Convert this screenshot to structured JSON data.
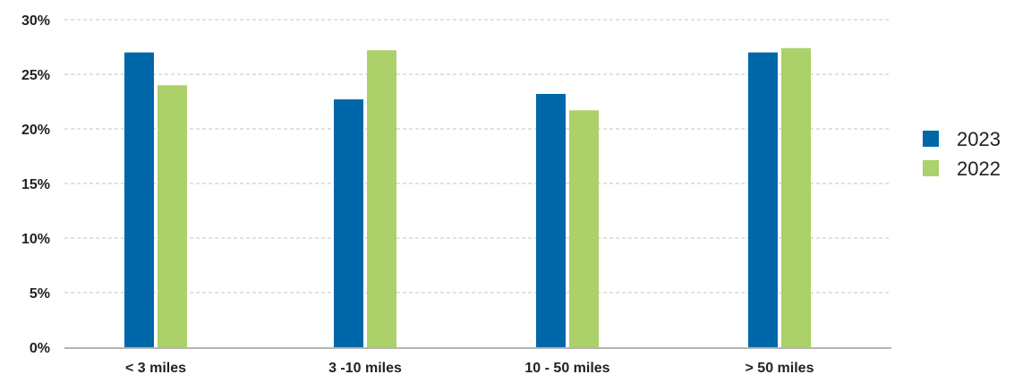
{
  "chart_data": {
    "type": "bar",
    "title": "",
    "xlabel": "",
    "ylabel": "",
    "categories": [
      "< 3 miles",
      "3 -10 miles",
      "10 - 50 miles",
      "> 50 miles"
    ],
    "series": [
      {
        "name": "2023",
        "color": "#0068a9",
        "values": [
          27.0,
          22.7,
          23.2,
          27.0
        ]
      },
      {
        "name": "2022",
        "color": "#acd16a",
        "values": [
          24.0,
          27.2,
          21.7,
          27.4
        ]
      }
    ],
    "ylim": [
      0,
      30
    ],
    "yticks": [
      0,
      5,
      10,
      15,
      20,
      25,
      30
    ],
    "ytick_labels": [
      "0%",
      "5%",
      "10%",
      "15%",
      "20%",
      "25%",
      "30%"
    ],
    "grid": true,
    "legend_position": "right"
  }
}
